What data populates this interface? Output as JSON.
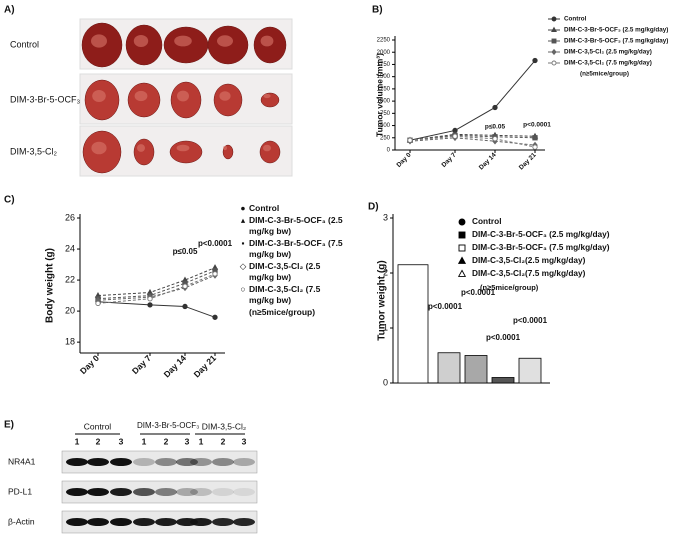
{
  "panel_labels": [
    "A)",
    "B)",
    "C)",
    "D)",
    "E)"
  ],
  "tumor_images": {
    "rows": [
      "Control",
      "DIM-3-Br-5-OCF₃",
      "DIM-3,5-Cl₂"
    ]
  },
  "chart_data": [
    {
      "type": "line",
      "ylabel": "Tumor volume (mm³)",
      "categories": [
        "Day 0",
        "Day 7",
        "Day 14",
        "Day 21"
      ],
      "ylim": [
        0,
        2250
      ],
      "yticks": [
        0,
        250,
        500,
        750,
        1000,
        1250,
        1500,
        1750,
        2000,
        2250
      ],
      "series": [
        {
          "name": "Control",
          "color": "#333333",
          "marker": "circle",
          "line_style": "solid",
          "values": [
            200,
            400,
            870,
            1830
          ]
        },
        {
          "name": "DIM-C-3-Br-5-OCF₃ (2.5 mg/kg/day)",
          "color": "#444444",
          "marker": "triangle",
          "line_style": "dashed",
          "values": [
            200,
            320,
            300,
            280
          ]
        },
        {
          "name": "DIM-C-3-Br-5-OCF₃ (7.5 mg/kg/day)",
          "color": "#555555",
          "marker": "square",
          "line_style": "dashed",
          "values": [
            200,
            300,
            270,
            250
          ]
        },
        {
          "name": "DIM-C-3,5-Cl₂ (2.5 mg/kg/day)",
          "color": "#666666",
          "marker": "diamond",
          "line_style": "dashed",
          "values": [
            180,
            250,
            180,
            100
          ]
        },
        {
          "name": "DIM-C-3,5-Cl₂ (7.5 mg/kg/day)",
          "color": "#777777",
          "marker": "circle-open",
          "line_style": "dashed",
          "values": [
            200,
            280,
            230,
            60
          ]
        }
      ],
      "note": "(n≥5mice/group)",
      "annotations": [
        "p≤0.05",
        "p<0.0001"
      ]
    },
    {
      "type": "line",
      "ylabel": "Body weight (g)",
      "categories": [
        "Day 0",
        "Day 7",
        "Day 14",
        "Day 21"
      ],
      "ylim": [
        17.3,
        26
      ],
      "yticks": [
        18,
        20,
        22,
        24,
        26
      ],
      "series": [
        {
          "name": "Control",
          "color": "#333333",
          "marker": "circle",
          "line_style": "solid",
          "values": [
            20.6,
            20.4,
            20.3,
            19.6
          ]
        },
        {
          "name": "DIM-C-3-Br-5-OCF₃ (2.5 mg/kg bw)",
          "color": "#444444",
          "marker": "triangle",
          "line_style": "dashed",
          "values": [
            21.0,
            21.2,
            22.0,
            22.8
          ]
        },
        {
          "name": "DIM-C-3-Br-5-OCF₃ (7.5 mg/kg bw)",
          "color": "#555555",
          "marker": "square",
          "line_style": "dashed",
          "values": [
            20.8,
            21.0,
            21.8,
            22.6
          ]
        },
        {
          "name": "DIM-C-3,5-Cl₂ (2.5 mg/kg bw)",
          "color": "#666666",
          "marker": "diamond",
          "line_style": "dashed",
          "values": [
            20.7,
            20.9,
            21.5,
            22.3
          ]
        },
        {
          "name": "DIM-C-3,5-Cl₂ (7.5 mg/kg bw)",
          "color": "#777777",
          "marker": "circle-open",
          "line_style": "dashed",
          "values": [
            20.5,
            20.8,
            21.6,
            22.4
          ]
        }
      ],
      "note": "(n≥5mice/group)",
      "annotations": [
        "p≤0.05",
        "p<0.0001"
      ]
    },
    {
      "type": "bar",
      "ylabel": "Tumor weight (g)",
      "categories": [
        "Control",
        "DIM-C-3-Br-5-OCF₃ (2.5 mg/kg/day)",
        "DIM-C-3-Br-5-OCF₃ (7.5 mg/kg/day)",
        "DIM-C-3,5-Cl₂(2.5 mg/kg/day)",
        "DIM-C-3,5-Cl₂(7.5 mg/kg/day)"
      ],
      "values": [
        2.15,
        0.55,
        0.5,
        0.1,
        0.45
      ],
      "colors": [
        "#ffffff",
        "#cfcfcf",
        "#a8a8a8",
        "#555555",
        "#e0e0e0"
      ],
      "markers": [
        "circle",
        "square",
        "square-open",
        "triangle",
        "triangle-open"
      ],
      "ylim": [
        0,
        3
      ],
      "yticks": [
        0,
        1,
        2,
        3
      ],
      "note": "(n≥5mice/group)",
      "annotations": [
        "p<0.0001",
        "p<0.0001",
        "p<0.0001",
        "p<0.0001"
      ]
    }
  ],
  "western_blot": {
    "groups": [
      {
        "name": "Control",
        "lanes": [
          "1",
          "2",
          "3"
        ]
      },
      {
        "name": "DIM-3-Br-5-OCF₃",
        "lanes": [
          "1",
          "2",
          "3"
        ]
      },
      {
        "name": "DIM-3,5-Cl₂",
        "lanes": [
          "1",
          "2",
          "3"
        ]
      }
    ],
    "rows": [
      "NR4A1",
      "PD-L1",
      "β-Actin"
    ]
  }
}
